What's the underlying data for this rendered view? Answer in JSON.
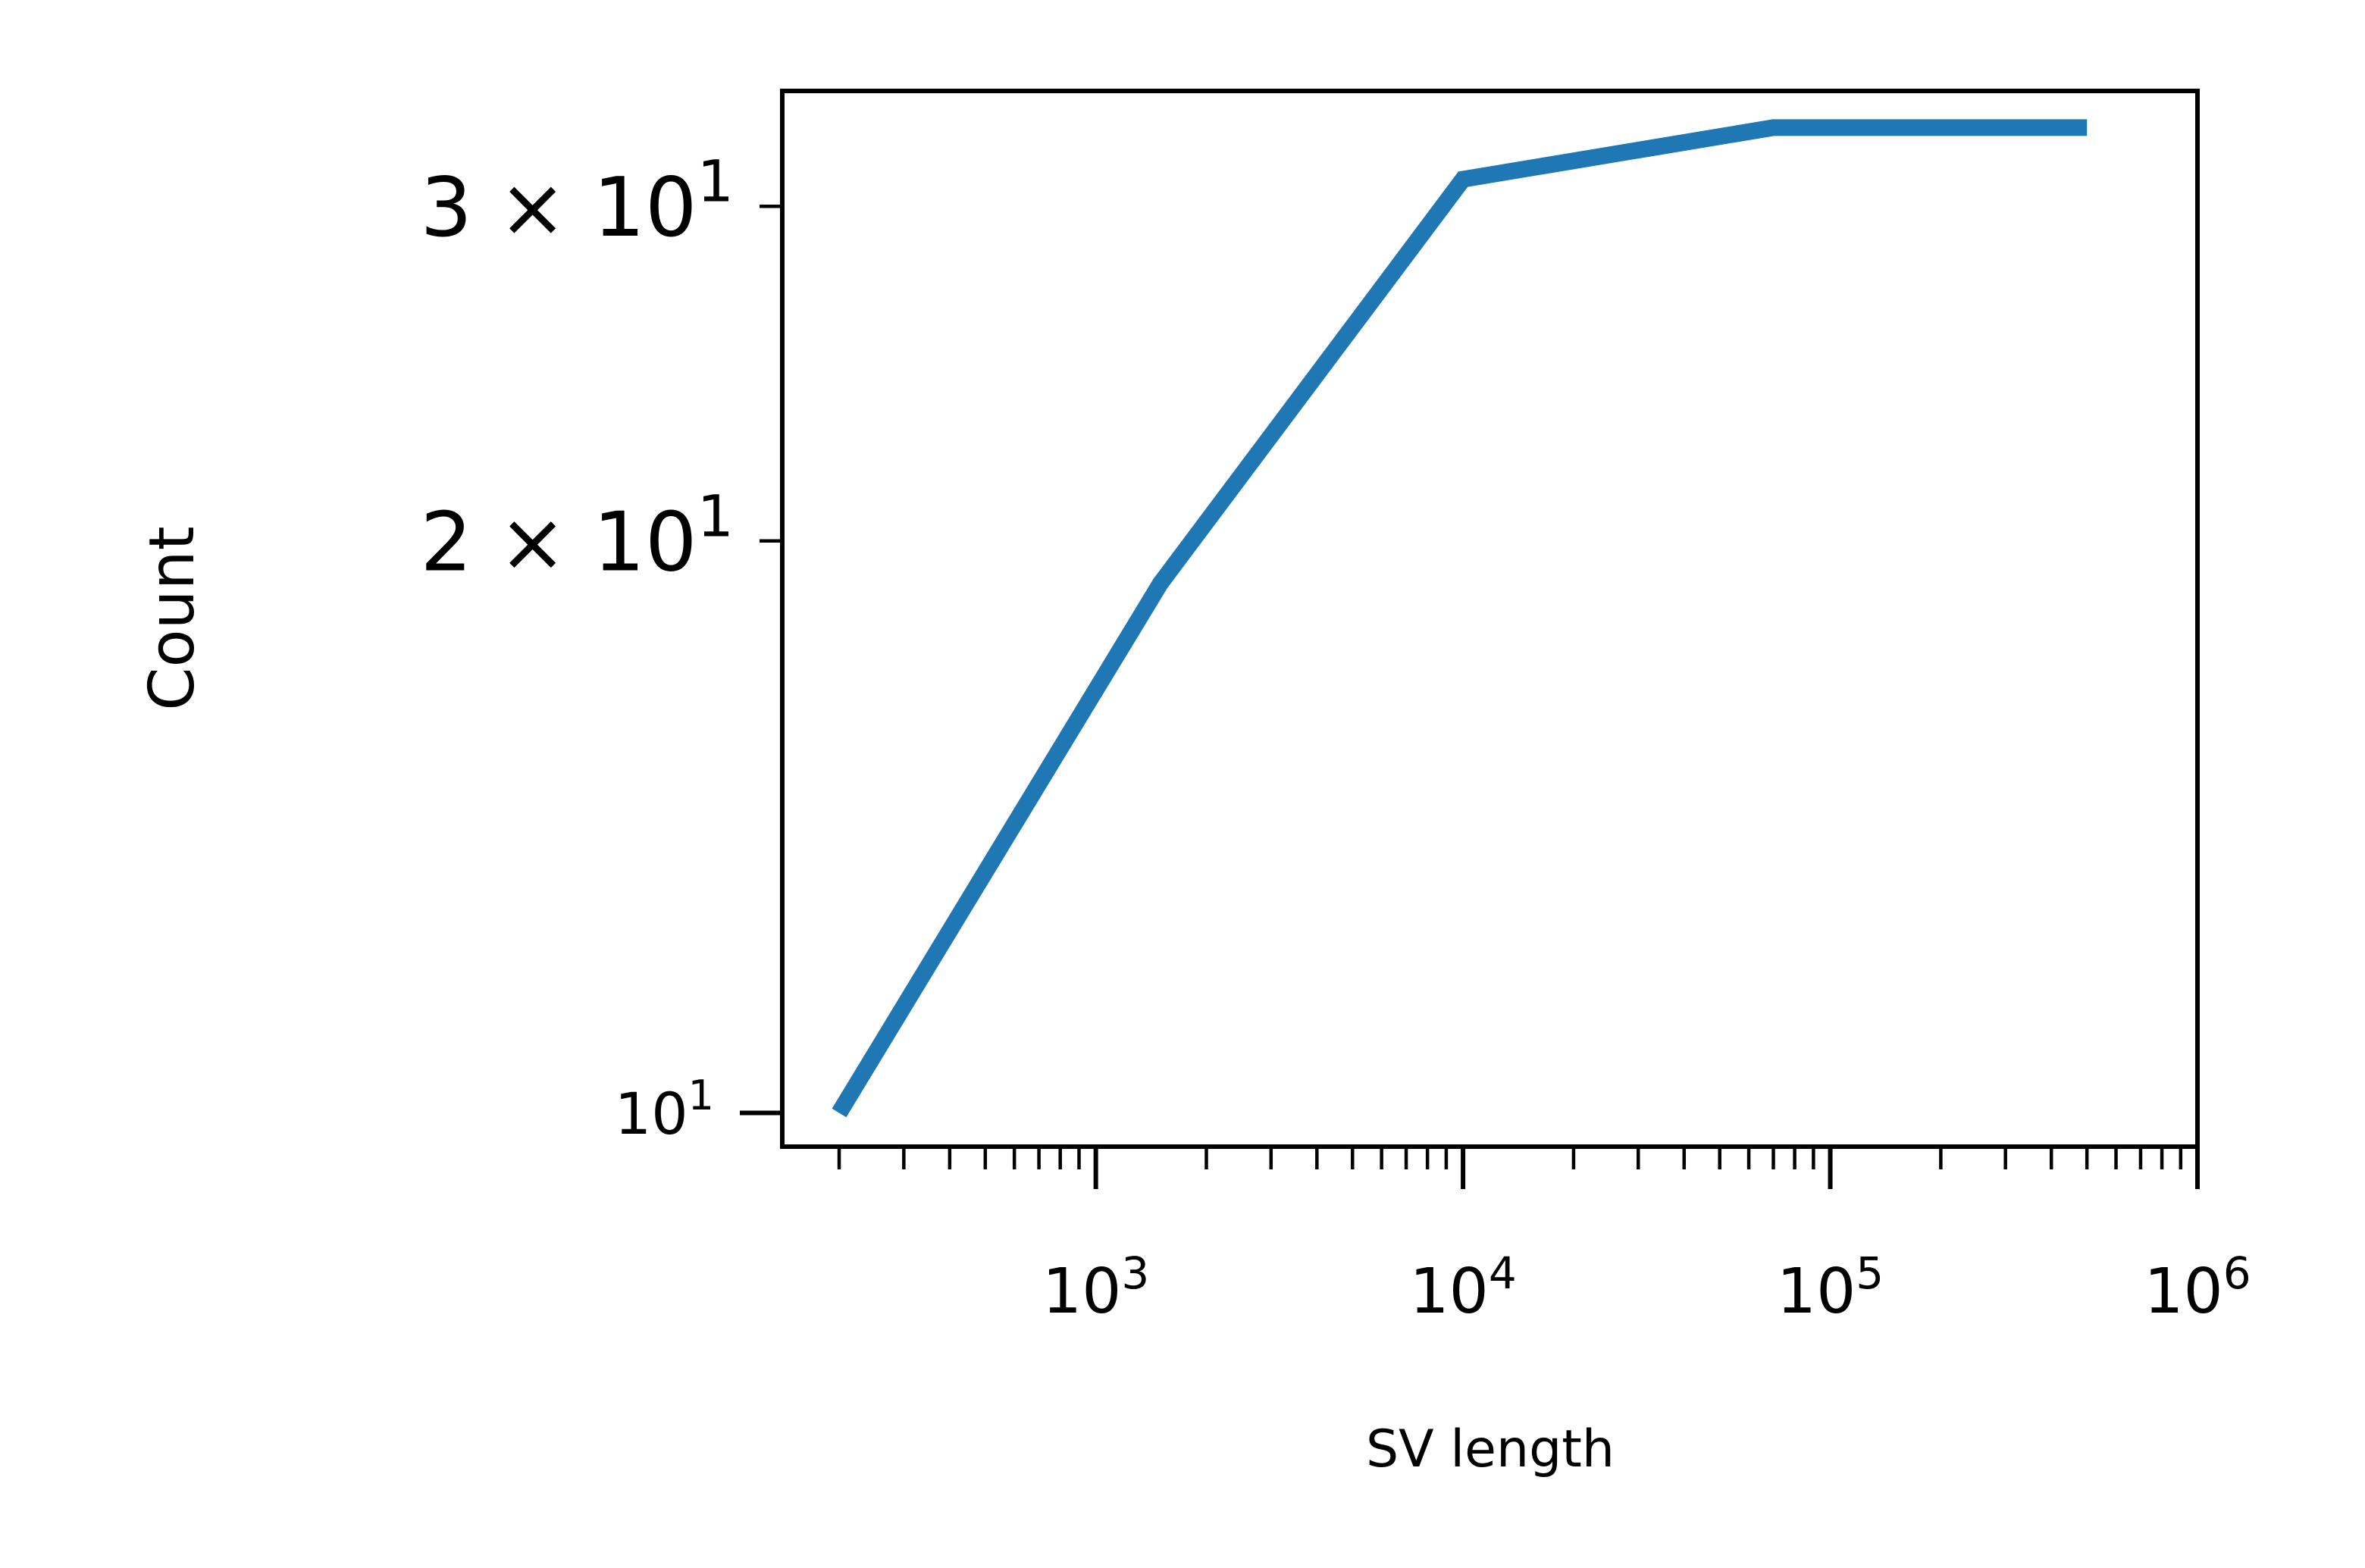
{
  "chart_data": {
    "type": "line",
    "title": "",
    "xlabel": "SV length",
    "ylabel": "Count",
    "xscale": "log",
    "yscale": "log",
    "xlim": [
      140,
      1000000
    ],
    "ylim": [
      9.6,
      34.5
    ],
    "grid": false,
    "legend": "none",
    "x_ticks": [
      {
        "value": 1000,
        "base": "10",
        "exp": "3"
      },
      {
        "value": 10000,
        "base": "10",
        "exp": "4"
      },
      {
        "value": 100000,
        "base": "10",
        "exp": "5"
      },
      {
        "value": 1000000,
        "base": "10",
        "exp": "6"
      }
    ],
    "y_ticks": [
      {
        "value": 10,
        "mantissa": "",
        "base": "10",
        "exp": "1"
      },
      {
        "value": 20,
        "mantissa": "2 × ",
        "base": "10",
        "exp": "1"
      },
      {
        "value": 30,
        "mantissa": "3 × ",
        "base": "10",
        "exp": "1"
      }
    ],
    "series": [
      {
        "color": "#1f77b4",
        "x": [
          200,
          1500,
          10000,
          70000,
          500000
        ],
        "y": [
          10,
          19,
          31,
          33,
          33
        ]
      }
    ]
  }
}
